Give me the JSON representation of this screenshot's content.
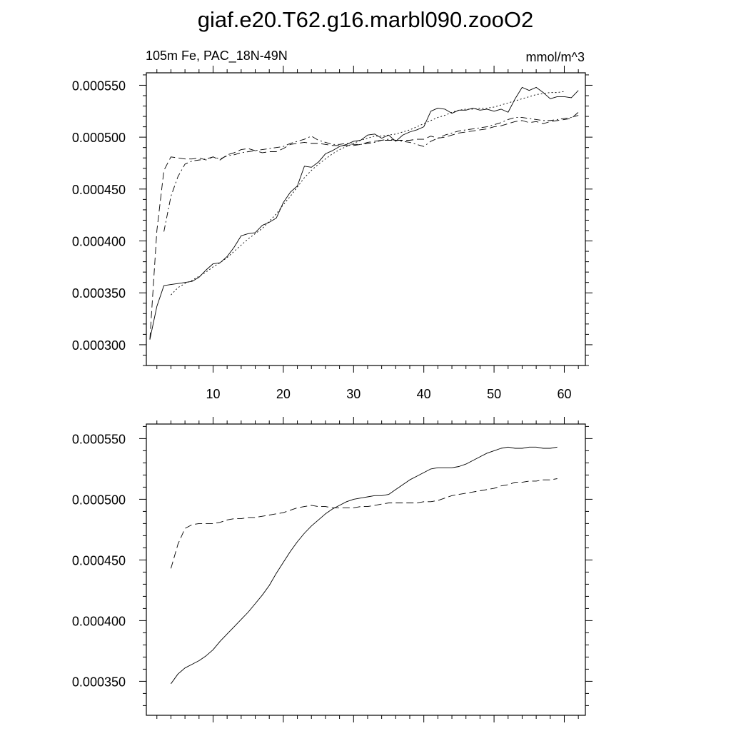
{
  "figure": {
    "title": "giaf.e20.T62.g16.marbl090.zooO2",
    "subtitle_left": "105m Fe, PAC_18N-49N",
    "subtitle_right": "mmol/m^3"
  },
  "chart_data": [
    {
      "type": "line",
      "title": "giaf.e20.T62.g16.marbl090.zooO2",
      "subtitle_left": "105m Fe, PAC_18N-49N",
      "subtitle_right": "mmol/m^3",
      "xlabel": "",
      "ylabel": "",
      "xlim": [
        0.5,
        63.0
      ],
      "ylim": [
        0.00028,
        0.000562
      ],
      "xticks": [
        10,
        20,
        30,
        40,
        50,
        60
      ],
      "xtick_labels": [
        "10",
        "20",
        "30",
        "40",
        "50",
        "60"
      ],
      "yticks": [
        0.0003,
        0.00035,
        0.0004,
        0.00045,
        0.0005,
        0.00055
      ],
      "ytick_labels": [
        "0.000300",
        "0.000350",
        "0.000400",
        "0.000450",
        "0.000500",
        "0.000550"
      ],
      "grid": false,
      "legend": "none",
      "series": [
        {
          "style": "solid",
          "x": [
            1,
            2,
            3,
            4,
            5,
            6,
            7,
            8,
            9,
            10,
            11,
            12,
            13,
            14,
            15,
            16,
            17,
            18,
            19,
            20,
            21,
            22,
            23,
            24,
            25,
            26,
            27,
            28,
            29,
            30,
            31,
            32,
            33,
            34,
            35,
            36,
            37,
            38,
            39,
            40,
            41,
            42,
            43,
            44,
            45,
            46,
            47,
            48,
            49,
            50,
            51,
            52,
            53,
            54,
            55,
            56,
            57,
            58,
            59,
            60,
            61,
            62
          ],
          "values": [
            0.000305,
            0.000337,
            0.000357,
            0.000358,
            0.000359,
            0.00036,
            0.000361,
            0.000365,
            0.000372,
            0.000378,
            0.000379,
            0.000385,
            0.000394,
            0.000405,
            0.000407,
            0.000408,
            0.000415,
            0.000418,
            0.000422,
            0.000437,
            0.000447,
            0.000453,
            0.000472,
            0.000471,
            0.000476,
            0.000484,
            0.000487,
            0.000491,
            0.000493,
            0.000496,
            0.000497,
            0.000502,
            0.000503,
            0.000499,
            0.000502,
            0.000496,
            0.000502,
            0.000505,
            0.000507,
            0.00051,
            0.000525,
            0.000528,
            0.000527,
            0.000523,
            0.000526,
            0.000526,
            0.000528,
            0.000526,
            0.000527,
            0.000525,
            0.000527,
            0.000524,
            0.000537,
            0.000548,
            0.000545,
            0.000548,
            0.000543,
            0.000537,
            0.000539,
            0.000539,
            0.000538,
            0.000545
          ]
        },
        {
          "style": "dashed",
          "x": [
            1,
            2,
            3,
            4,
            5,
            6,
            7,
            8,
            9,
            10,
            11,
            12,
            13,
            14,
            15,
            16,
            17,
            18,
            19,
            20,
            21,
            22,
            23,
            24,
            25,
            26,
            27,
            28,
            29,
            30,
            31,
            32,
            33,
            34,
            35,
            36,
            37,
            38,
            39,
            40,
            41,
            42,
            43,
            44,
            45,
            46,
            47,
            48,
            49,
            50,
            51,
            52,
            53,
            54,
            55,
            56,
            57,
            58,
            59,
            60,
            61,
            62
          ],
          "values": [
            0.000305,
            0.00041,
            0.000468,
            0.000481,
            0.00048,
            0.000479,
            0.000479,
            0.00048,
            0.000478,
            0.000481,
            0.000478,
            0.000483,
            0.000485,
            0.000488,
            0.000489,
            0.000487,
            0.000485,
            0.000486,
            0.000486,
            0.000489,
            0.000493,
            0.000494,
            0.000495,
            0.000494,
            0.000494,
            0.000493,
            0.000492,
            0.000492,
            0.000492,
            0.000492,
            0.000493,
            0.000495,
            0.000496,
            0.000497,
            0.000497,
            0.000497,
            0.000497,
            0.000497,
            0.000498,
            0.000498,
            0.000501,
            0.000499,
            0.0005,
            0.000502,
            0.000504,
            0.000505,
            0.000506,
            0.000507,
            0.000508,
            0.00051,
            0.000511,
            0.000513,
            0.000515,
            0.000516,
            0.000514,
            0.000515,
            0.000513,
            0.000515,
            0.000516,
            0.000517,
            0.000518,
            0.000524
          ]
        },
        {
          "style": "dash-dot",
          "x": [
            3,
            4,
            5,
            6,
            7,
            8,
            9,
            10,
            11,
            12,
            13,
            14,
            15,
            16,
            17,
            18,
            19,
            20,
            21,
            22,
            23,
            24,
            25,
            26,
            27,
            28,
            29,
            30,
            31,
            32,
            33,
            34,
            35,
            36,
            37,
            38,
            39,
            40,
            41,
            42,
            43,
            44,
            45,
            46,
            47,
            48,
            49,
            50,
            51,
            52,
            53,
            54,
            55,
            56,
            57,
            58,
            59,
            60,
            61,
            62
          ],
          "values": [
            0.000409,
            0.000443,
            0.000462,
            0.000474,
            0.000477,
            0.000478,
            0.000479,
            0.000481,
            0.000479,
            0.000482,
            0.000483,
            0.000485,
            0.000486,
            0.000487,
            0.000488,
            0.000489,
            0.00049,
            0.000491,
            0.000494,
            0.000496,
            0.000498,
            0.000501,
            0.000497,
            0.000495,
            0.000493,
            0.000493,
            0.000494,
            0.000493,
            0.000493,
            0.000494,
            0.000495,
            0.000497,
            0.000498,
            0.000497,
            0.000496,
            0.000495,
            0.000493,
            0.000491,
            0.000496,
            0.000499,
            0.000502,
            0.000504,
            0.000506,
            0.000507,
            0.000508,
            0.000509,
            0.00051,
            0.000512,
            0.000514,
            0.000517,
            0.000519,
            0.000519,
            0.000518,
            0.000517,
            0.000516,
            0.000516,
            0.000517,
            0.000518,
            0.000519,
            0.000521
          ]
        },
        {
          "style": "dotted",
          "x": [
            4,
            5,
            6,
            7,
            8,
            9,
            10,
            11,
            12,
            13,
            14,
            15,
            16,
            17,
            18,
            19,
            20,
            21,
            22,
            23,
            24,
            25,
            26,
            27,
            28,
            29,
            30,
            31,
            32,
            33,
            34,
            35,
            36,
            37,
            38,
            39,
            40,
            41,
            42,
            43,
            44,
            45,
            46,
            47,
            48,
            49,
            50,
            51,
            52,
            53,
            54,
            55,
            56,
            57,
            58,
            59,
            60
          ],
          "values": [
            0.000348,
            0.000355,
            0.000359,
            0.000362,
            0.000366,
            0.00037,
            0.000375,
            0.000379,
            0.000384,
            0.00039,
            0.000396,
            0.000402,
            0.000407,
            0.000412,
            0.000419,
            0.000426,
            0.000435,
            0.000443,
            0.000452,
            0.000461,
            0.000468,
            0.000474,
            0.000479,
            0.000484,
            0.000488,
            0.000491,
            0.000494,
            0.000497,
            0.000499,
            0.000501,
            0.000501,
            0.000502,
            0.000503,
            0.000505,
            0.000507,
            0.00051,
            0.000513,
            0.000516,
            0.000519,
            0.000521,
            0.000524,
            0.000526,
            0.000527,
            0.000527,
            0.000528,
            0.000528,
            0.000529,
            0.000531,
            0.000533,
            0.000535,
            0.000537,
            0.000539,
            0.000541,
            0.000542,
            0.000543,
            0.000543,
            0.000544
          ]
        }
      ]
    },
    {
      "type": "line",
      "xlim": [
        0.5,
        63.0
      ],
      "ylim": [
        0.000322,
        0.000562
      ],
      "xticks": [
        10,
        20,
        30,
        40,
        50,
        60
      ],
      "yticks": [
        0.00035,
        0.0004,
        0.00045,
        0.0005,
        0.00055
      ],
      "ytick_labels": [
        "0.000350",
        "0.000400",
        "0.000450",
        "0.000500",
        "0.000550"
      ],
      "grid": false,
      "legend": "none",
      "series": [
        {
          "style": "solid",
          "x": [
            4,
            5,
            6,
            7,
            8,
            9,
            10,
            11,
            12,
            13,
            14,
            15,
            16,
            17,
            18,
            19,
            20,
            21,
            22,
            23,
            24,
            25,
            26,
            27,
            28,
            29,
            30,
            31,
            32,
            33,
            34,
            35,
            36,
            37,
            38,
            39,
            40,
            41,
            42,
            43,
            44,
            45,
            46,
            47,
            48,
            49,
            50,
            51,
            52,
            53,
            54,
            55,
            56,
            57,
            58,
            59
          ],
          "values": [
            0.000348,
            0.000356,
            0.000361,
            0.000364,
            0.000367,
            0.000371,
            0.000376,
            0.000383,
            0.000389,
            0.000395,
            0.000401,
            0.000407,
            0.000414,
            0.000421,
            0.000429,
            0.000439,
            0.000448,
            0.000457,
            0.000465,
            0.000472,
            0.000478,
            0.000483,
            0.000488,
            0.000492,
            0.000495,
            0.000498,
            0.0005,
            0.000501,
            0.000502,
            0.000503,
            0.000503,
            0.000504,
            0.000508,
            0.000512,
            0.000516,
            0.000519,
            0.000522,
            0.000525,
            0.000526,
            0.000526,
            0.000526,
            0.000527,
            0.000529,
            0.000532,
            0.000535,
            0.000538,
            0.00054,
            0.000542,
            0.000543,
            0.000542,
            0.000542,
            0.000543,
            0.000543,
            0.000542,
            0.000542,
            0.000543
          ]
        },
        {
          "style": "dashed",
          "x": [
            4,
            5,
            6,
            7,
            8,
            9,
            10,
            11,
            12,
            13,
            14,
            15,
            16,
            17,
            18,
            19,
            20,
            21,
            22,
            23,
            24,
            25,
            26,
            27,
            28,
            29,
            30,
            31,
            32,
            33,
            34,
            35,
            36,
            37,
            38,
            39,
            40,
            41,
            42,
            43,
            44,
            45,
            46,
            47,
            48,
            49,
            50,
            51,
            52,
            53,
            54,
            55,
            56,
            57,
            58,
            59
          ],
          "values": [
            0.000443,
            0.000463,
            0.000476,
            0.000479,
            0.00048,
            0.00048,
            0.00048,
            0.000481,
            0.000483,
            0.000484,
            0.000484,
            0.000485,
            0.000485,
            0.000486,
            0.000487,
            0.000488,
            0.000489,
            0.000491,
            0.000493,
            0.000494,
            0.000495,
            0.000494,
            0.000494,
            0.000493,
            0.000493,
            0.000493,
            0.000493,
            0.000494,
            0.000494,
            0.000495,
            0.000496,
            0.000497,
            0.000497,
            0.000497,
            0.000497,
            0.000497,
            0.000498,
            0.000498,
            0.000499,
            0.000501,
            0.000503,
            0.000504,
            0.000505,
            0.000506,
            0.000507,
            0.000508,
            0.000509,
            0.000511,
            0.000512,
            0.000514,
            0.000514,
            0.000515,
            0.000515,
            0.000516,
            0.000516,
            0.000517
          ]
        }
      ]
    }
  ]
}
